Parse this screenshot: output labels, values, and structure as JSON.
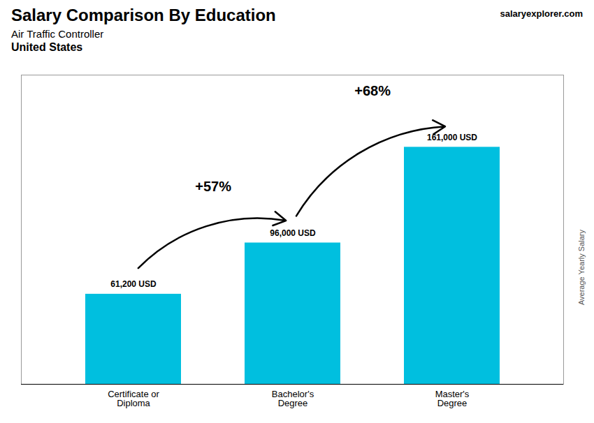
{
  "chart_data": {
    "type": "bar",
    "title": "Salary Comparison By Education",
    "subtitle": "Air Traffic Controller",
    "y_label": "Average Yearly Salary",
    "categories": [
      "Certificate or\nDiploma",
      "Bachelor's\nDegree",
      "Master's\nDegree"
    ],
    "values": [
      61200,
      96000,
      161000
    ],
    "value_labels": [
      "61,200 USD",
      "96,000 USD",
      "161,000 USD"
    ],
    "data_labels": true,
    "color": "#00bfdf",
    "ylim": [
      0,
      210000
    ],
    "tick_labels": "x",
    "annotations": [
      {
        "text": "United States"
      },
      {
        "text": "salaryexplorer.com"
      },
      {
        "text": "+57%",
        "from": "Certificate or\nDiploma",
        "to": "Bachelor's\nDegree"
      },
      {
        "text": "+68%",
        "from": "Bachelor's\nDegree",
        "to": "Master's\nDegree"
      }
    ]
  }
}
